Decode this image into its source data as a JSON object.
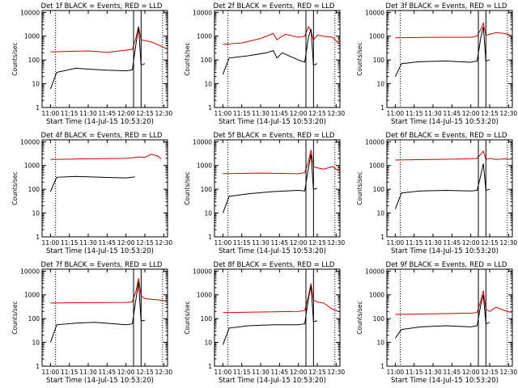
{
  "figure": {
    "background": "#ffffff",
    "axis_color": "#000000"
  },
  "chart_data": [
    {
      "type": "line",
      "title": "Det 1f BLACK = Events, RED = LLD",
      "xlabel": "Start Time (14-Jul-15 10:53:20)",
      "ylabel": "Counts/sec",
      "xticks": [
        "11:00",
        "11:15",
        "11:30",
        "11:45",
        "12:00",
        "12:15",
        "12:30"
      ],
      "yticks": [
        "1",
        "10",
        "100",
        "1000",
        "10000"
      ],
      "xlim": [
        "10:53:20",
        "12:33:00"
      ],
      "ylim": [
        1,
        12000
      ],
      "yscale": "log",
      "series": [
        {
          "color": "#d40000",
          "x": [
            "11:00",
            "11:30",
            "11:45",
            "12:00",
            "12:05",
            "12:08",
            "12:10",
            "12:12",
            "12:15",
            "12:20",
            "12:27",
            "12:32"
          ],
          "y": [
            220,
            240,
            210,
            260,
            280,
            900,
            2500,
            700,
            650,
            580,
            400,
            300
          ]
        },
        {
          "color": "#000000",
          "x": [
            "11:00",
            "11:05",
            "11:20",
            "11:40",
            "12:00",
            "12:05",
            "12:08",
            "12:10",
            "12:12",
            "12:15"
          ],
          "y": [
            6,
            30,
            45,
            38,
            35,
            38,
            500,
            2500,
            60,
            70
          ]
        }
      ],
      "vlines_dotted": [
        "11:04",
        "12:29"
      ],
      "vlines_solid": [
        "12:06",
        "12:12"
      ]
    },
    {
      "type": "line",
      "title": "Det 2f BLACK = Events, RED = LLD",
      "xlabel": "Start Time (14-Jul-15 10:53:20)",
      "ylabel": "Counts/sec",
      "xticks": [
        "11:00",
        "11:15",
        "11:30",
        "11:45",
        "12:00",
        "12:15",
        "12:30"
      ],
      "yticks": [
        "1",
        "10",
        "100",
        "1000",
        "10000"
      ],
      "xlim": [
        "10:53:20",
        "12:33:00"
      ],
      "ylim": [
        1,
        12000
      ],
      "yscale": "log",
      "series": [
        {
          "color": "#d40000",
          "x": [
            "11:00",
            "11:15",
            "11:30",
            "11:40",
            "11:43",
            "11:47",
            "11:50",
            "12:00",
            "12:05",
            "12:08",
            "12:10",
            "12:12",
            "12:15",
            "12:20",
            "12:27",
            "12:32"
          ],
          "y": [
            450,
            520,
            800,
            1300,
            700,
            1000,
            1200,
            900,
            1000,
            2500,
            1700,
            700,
            1100,
            1000,
            900,
            500
          ]
        },
        {
          "color": "#000000",
          "x": [
            "11:00",
            "11:05",
            "11:20",
            "11:35",
            "11:40",
            "11:43",
            "11:47",
            "12:00",
            "12:05",
            "12:08",
            "12:10",
            "12:12",
            "12:15"
          ],
          "y": [
            25,
            120,
            150,
            200,
            250,
            120,
            200,
            100,
            80,
            900,
            2000,
            60,
            70
          ]
        }
      ],
      "vlines_dotted": [
        "11:04",
        "12:29"
      ],
      "vlines_solid": [
        "12:06",
        "12:12"
      ]
    },
    {
      "type": "line",
      "title": "Det 3f BLACK = Events, RED = LLD",
      "xlabel": "Start Time (14-Jul-15 10:53:20)",
      "ylabel": "Counts/sec",
      "xticks": [
        "11:00",
        "11:15",
        "11:30",
        "11:45",
        "12:00",
        "12:15",
        "12:30"
      ],
      "yticks": [
        "1",
        "10",
        "100",
        "1000",
        "10000"
      ],
      "xlim": [
        "10:53:20",
        "12:33:00"
      ],
      "ylim": [
        1,
        12000
      ],
      "yscale": "log",
      "series": [
        {
          "color": "#d40000",
          "x": [
            "11:00",
            "11:30",
            "12:00",
            "12:05",
            "12:08",
            "12:10",
            "12:12",
            "12:15",
            "12:20",
            "12:27",
            "12:32"
          ],
          "y": [
            850,
            900,
            900,
            1000,
            2000,
            3500,
            1100,
            1200,
            1400,
            1300,
            1100
          ]
        },
        {
          "color": "#000000",
          "x": [
            "11:00",
            "11:05",
            "11:20",
            "11:40",
            "12:00",
            "12:05",
            "12:08",
            "12:10",
            "12:12",
            "12:15"
          ],
          "y": [
            20,
            70,
            85,
            90,
            80,
            90,
            900,
            2500,
            90,
            100
          ]
        }
      ],
      "vlines_dotted": [
        "11:04",
        "12:29"
      ],
      "vlines_solid": [
        "12:06",
        "12:12"
      ]
    },
    {
      "type": "line",
      "title": "Det 4f BLACK = Events, RED = LLD",
      "xlabel": "Start Time (14-Jul-15 10:53:20)",
      "ylabel": "Counts/sec",
      "xticks": [
        "11:00",
        "11:15",
        "11:30",
        "11:45",
        "12:00",
        "12:15",
        "12:30"
      ],
      "yticks": [
        "1",
        "10",
        "100",
        "1000",
        "10000"
      ],
      "xlim": [
        "10:53:20",
        "12:33:00"
      ],
      "ylim": [
        1,
        12000
      ],
      "yscale": "log",
      "series": [
        {
          "color": "#d40000",
          "x": [
            "11:00",
            "11:30",
            "12:00",
            "12:05",
            "12:10",
            "12:15",
            "12:20",
            "12:25",
            "12:28"
          ],
          "y": [
            1800,
            1900,
            2000,
            2100,
            2300,
            2200,
            3000,
            2500,
            1900
          ]
        },
        {
          "color": "#000000",
          "x": [
            "11:00",
            "11:05",
            "11:20",
            "11:40",
            "12:00",
            "12:05",
            "12:07"
          ],
          "y": [
            80,
            320,
            350,
            320,
            300,
            320,
            330
          ]
        }
      ],
      "vlines_dotted": [
        "11:04"
      ],
      "vlines_solid": []
    },
    {
      "type": "line",
      "title": "Det 5f BLACK = Events, RED = LLD",
      "xlabel": "Start Time (14-Jul-15 10:53:20)",
      "ylabel": "Counts/sec",
      "xticks": [
        "11:00",
        "11:15",
        "11:30",
        "11:45",
        "12:00",
        "12:15",
        "12:30"
      ],
      "yticks": [
        "1",
        "10",
        "100",
        "1000",
        "10000"
      ],
      "xlim": [
        "10:53:20",
        "12:33:00"
      ],
      "ylim": [
        1,
        12000
      ],
      "yscale": "log",
      "series": [
        {
          "color": "#d40000",
          "x": [
            "11:00",
            "11:30",
            "12:00",
            "12:05",
            "12:08",
            "12:10",
            "12:12",
            "12:15",
            "12:20",
            "12:27",
            "12:32"
          ],
          "y": [
            450,
            480,
            450,
            500,
            1500,
            4500,
            900,
            800,
            700,
            900,
            600
          ]
        },
        {
          "color": "#000000",
          "x": [
            "11:00",
            "11:05",
            "11:20",
            "11:40",
            "12:00",
            "12:05",
            "12:08",
            "12:10",
            "12:12",
            "12:15"
          ],
          "y": [
            10,
            50,
            65,
            80,
            90,
            85,
            800,
            3000,
            100,
            110
          ]
        }
      ],
      "vlines_dotted": [
        "11:04",
        "12:29"
      ],
      "vlines_solid": [
        "12:06",
        "12:12"
      ]
    },
    {
      "type": "line",
      "title": "Det 6f BLACK = Events, RED = LLD",
      "xlabel": "Start Time (14-Jul-15 10:53:20)",
      "ylabel": "Counts/sec",
      "xticks": [
        "11:00",
        "11:15",
        "11:30",
        "11:45",
        "12:00",
        "12:15",
        "12:30"
      ],
      "yticks": [
        "1",
        "10",
        "100",
        "1000",
        "10000"
      ],
      "xlim": [
        "10:53:20",
        "12:33:00"
      ],
      "ylim": [
        1,
        12000
      ],
      "yscale": "log",
      "series": [
        {
          "color": "#d40000",
          "x": [
            "11:00",
            "11:30",
            "12:00",
            "12:05",
            "12:08",
            "12:10",
            "12:12",
            "12:15",
            "12:20",
            "12:27",
            "12:32"
          ],
          "y": [
            1700,
            1800,
            1900,
            2000,
            3000,
            4000,
            1800,
            2000,
            1800,
            1900,
            1800
          ]
        },
        {
          "color": "#000000",
          "x": [
            "11:00",
            "11:05",
            "11:20",
            "11:40",
            "12:00",
            "12:05",
            "12:08",
            "12:10",
            "12:12",
            "12:15"
          ],
          "y": [
            15,
            70,
            85,
            90,
            85,
            90,
            400,
            1200,
            90,
            100
          ]
        }
      ],
      "vlines_dotted": [
        "11:04",
        "12:29"
      ],
      "vlines_solid": [
        "12:06",
        "12:12"
      ]
    },
    {
      "type": "line",
      "title": "Det 7f BLACK = Events, RED = LLD",
      "xlabel": "Start Time (14-Jul-15 10:53:20)",
      "ylabel": "Counts/sec",
      "xticks": [
        "11:00",
        "11:15",
        "11:30",
        "11:45",
        "12:00",
        "12:15",
        "12:30"
      ],
      "yticks": [
        "1",
        "10",
        "100",
        "1000",
        "10000"
      ],
      "xlim": [
        "10:53:20",
        "12:33:00"
      ],
      "ylim": [
        1,
        12000
      ],
      "yscale": "log",
      "series": [
        {
          "color": "#d40000",
          "x": [
            "11:00",
            "11:30",
            "12:00",
            "12:05",
            "12:08",
            "12:10",
            "12:12",
            "12:15",
            "12:20",
            "12:27",
            "12:32"
          ],
          "y": [
            450,
            470,
            480,
            500,
            1500,
            5000,
            900,
            700,
            650,
            600,
            550
          ]
        },
        {
          "color": "#000000",
          "x": [
            "11:00",
            "11:05",
            "11:20",
            "11:35",
            "12:00",
            "12:05",
            "12:08",
            "12:10",
            "12:12",
            "12:15"
          ],
          "y": [
            10,
            55,
            65,
            70,
            55,
            60,
            700,
            3500,
            80,
            85
          ]
        }
      ],
      "vlines_dotted": [
        "11:04",
        "12:29"
      ],
      "vlines_solid": [
        "12:06",
        "12:12"
      ]
    },
    {
      "type": "line",
      "title": "Det 8f BLACK = Events, RED = LLD",
      "xlabel": "Start Time (14-Jul-15 10:53:20)",
      "ylabel": "Counts/sec",
      "xticks": [
        "11:00",
        "11:15",
        "11:30",
        "11:45",
        "12:00",
        "12:15",
        "12:30"
      ],
      "yticks": [
        "1",
        "10",
        "100",
        "1000",
        "10000"
      ],
      "xlim": [
        "10:53:20",
        "12:33:00"
      ],
      "ylim": [
        1,
        12000
      ],
      "yscale": "log",
      "series": [
        {
          "color": "#d40000",
          "x": [
            "11:00",
            "11:30",
            "12:00",
            "12:05",
            "12:08",
            "12:10",
            "12:12",
            "12:15",
            "12:20",
            "12:27",
            "12:32"
          ],
          "y": [
            180,
            190,
            200,
            220,
            900,
            3000,
            600,
            500,
            450,
            250,
            200
          ]
        },
        {
          "color": "#000000",
          "x": [
            "11:00",
            "11:05",
            "11:20",
            "11:40",
            "12:00",
            "12:05",
            "12:08",
            "12:10",
            "12:12",
            "12:15"
          ],
          "y": [
            8,
            40,
            50,
            55,
            55,
            60,
            700,
            2500,
            75,
            80
          ]
        }
      ],
      "vlines_dotted": [
        "11:04",
        "12:29"
      ],
      "vlines_solid": [
        "12:06",
        "12:12"
      ]
    },
    {
      "type": "line",
      "title": "Det 9f BLACK = Events, RED = LLD",
      "xlabel": "Start Time (14-Jul-15 10:53:20)",
      "ylabel": "Counts/sec",
      "xticks": [
        "11:00",
        "11:15",
        "11:30",
        "11:45",
        "12:00",
        "12:15",
        "12:30"
      ],
      "yticks": [
        "1",
        "10",
        "100",
        "1000",
        "10000"
      ],
      "xlim": [
        "10:53:20",
        "12:33:00"
      ],
      "ylim": [
        1,
        12000
      ],
      "yscale": "log",
      "series": [
        {
          "color": "#d40000",
          "x": [
            "11:00",
            "11:30",
            "12:00",
            "12:05",
            "12:08",
            "12:10",
            "12:12",
            "12:15",
            "12:20",
            "12:27",
            "12:32"
          ],
          "y": [
            150,
            160,
            170,
            180,
            600,
            1500,
            250,
            200,
            300,
            220,
            180
          ]
        },
        {
          "color": "#000000",
          "x": [
            "11:00",
            "11:05",
            "11:20",
            "11:40",
            "12:00",
            "12:05",
            "12:08",
            "12:10",
            "12:12",
            "12:15"
          ],
          "y": [
            15,
            35,
            45,
            50,
            45,
            50,
            400,
            1000,
            60,
            70
          ]
        }
      ],
      "vlines_dotted": [
        "11:04",
        "12:29"
      ],
      "vlines_solid": [
        "12:06",
        "12:12"
      ]
    }
  ]
}
